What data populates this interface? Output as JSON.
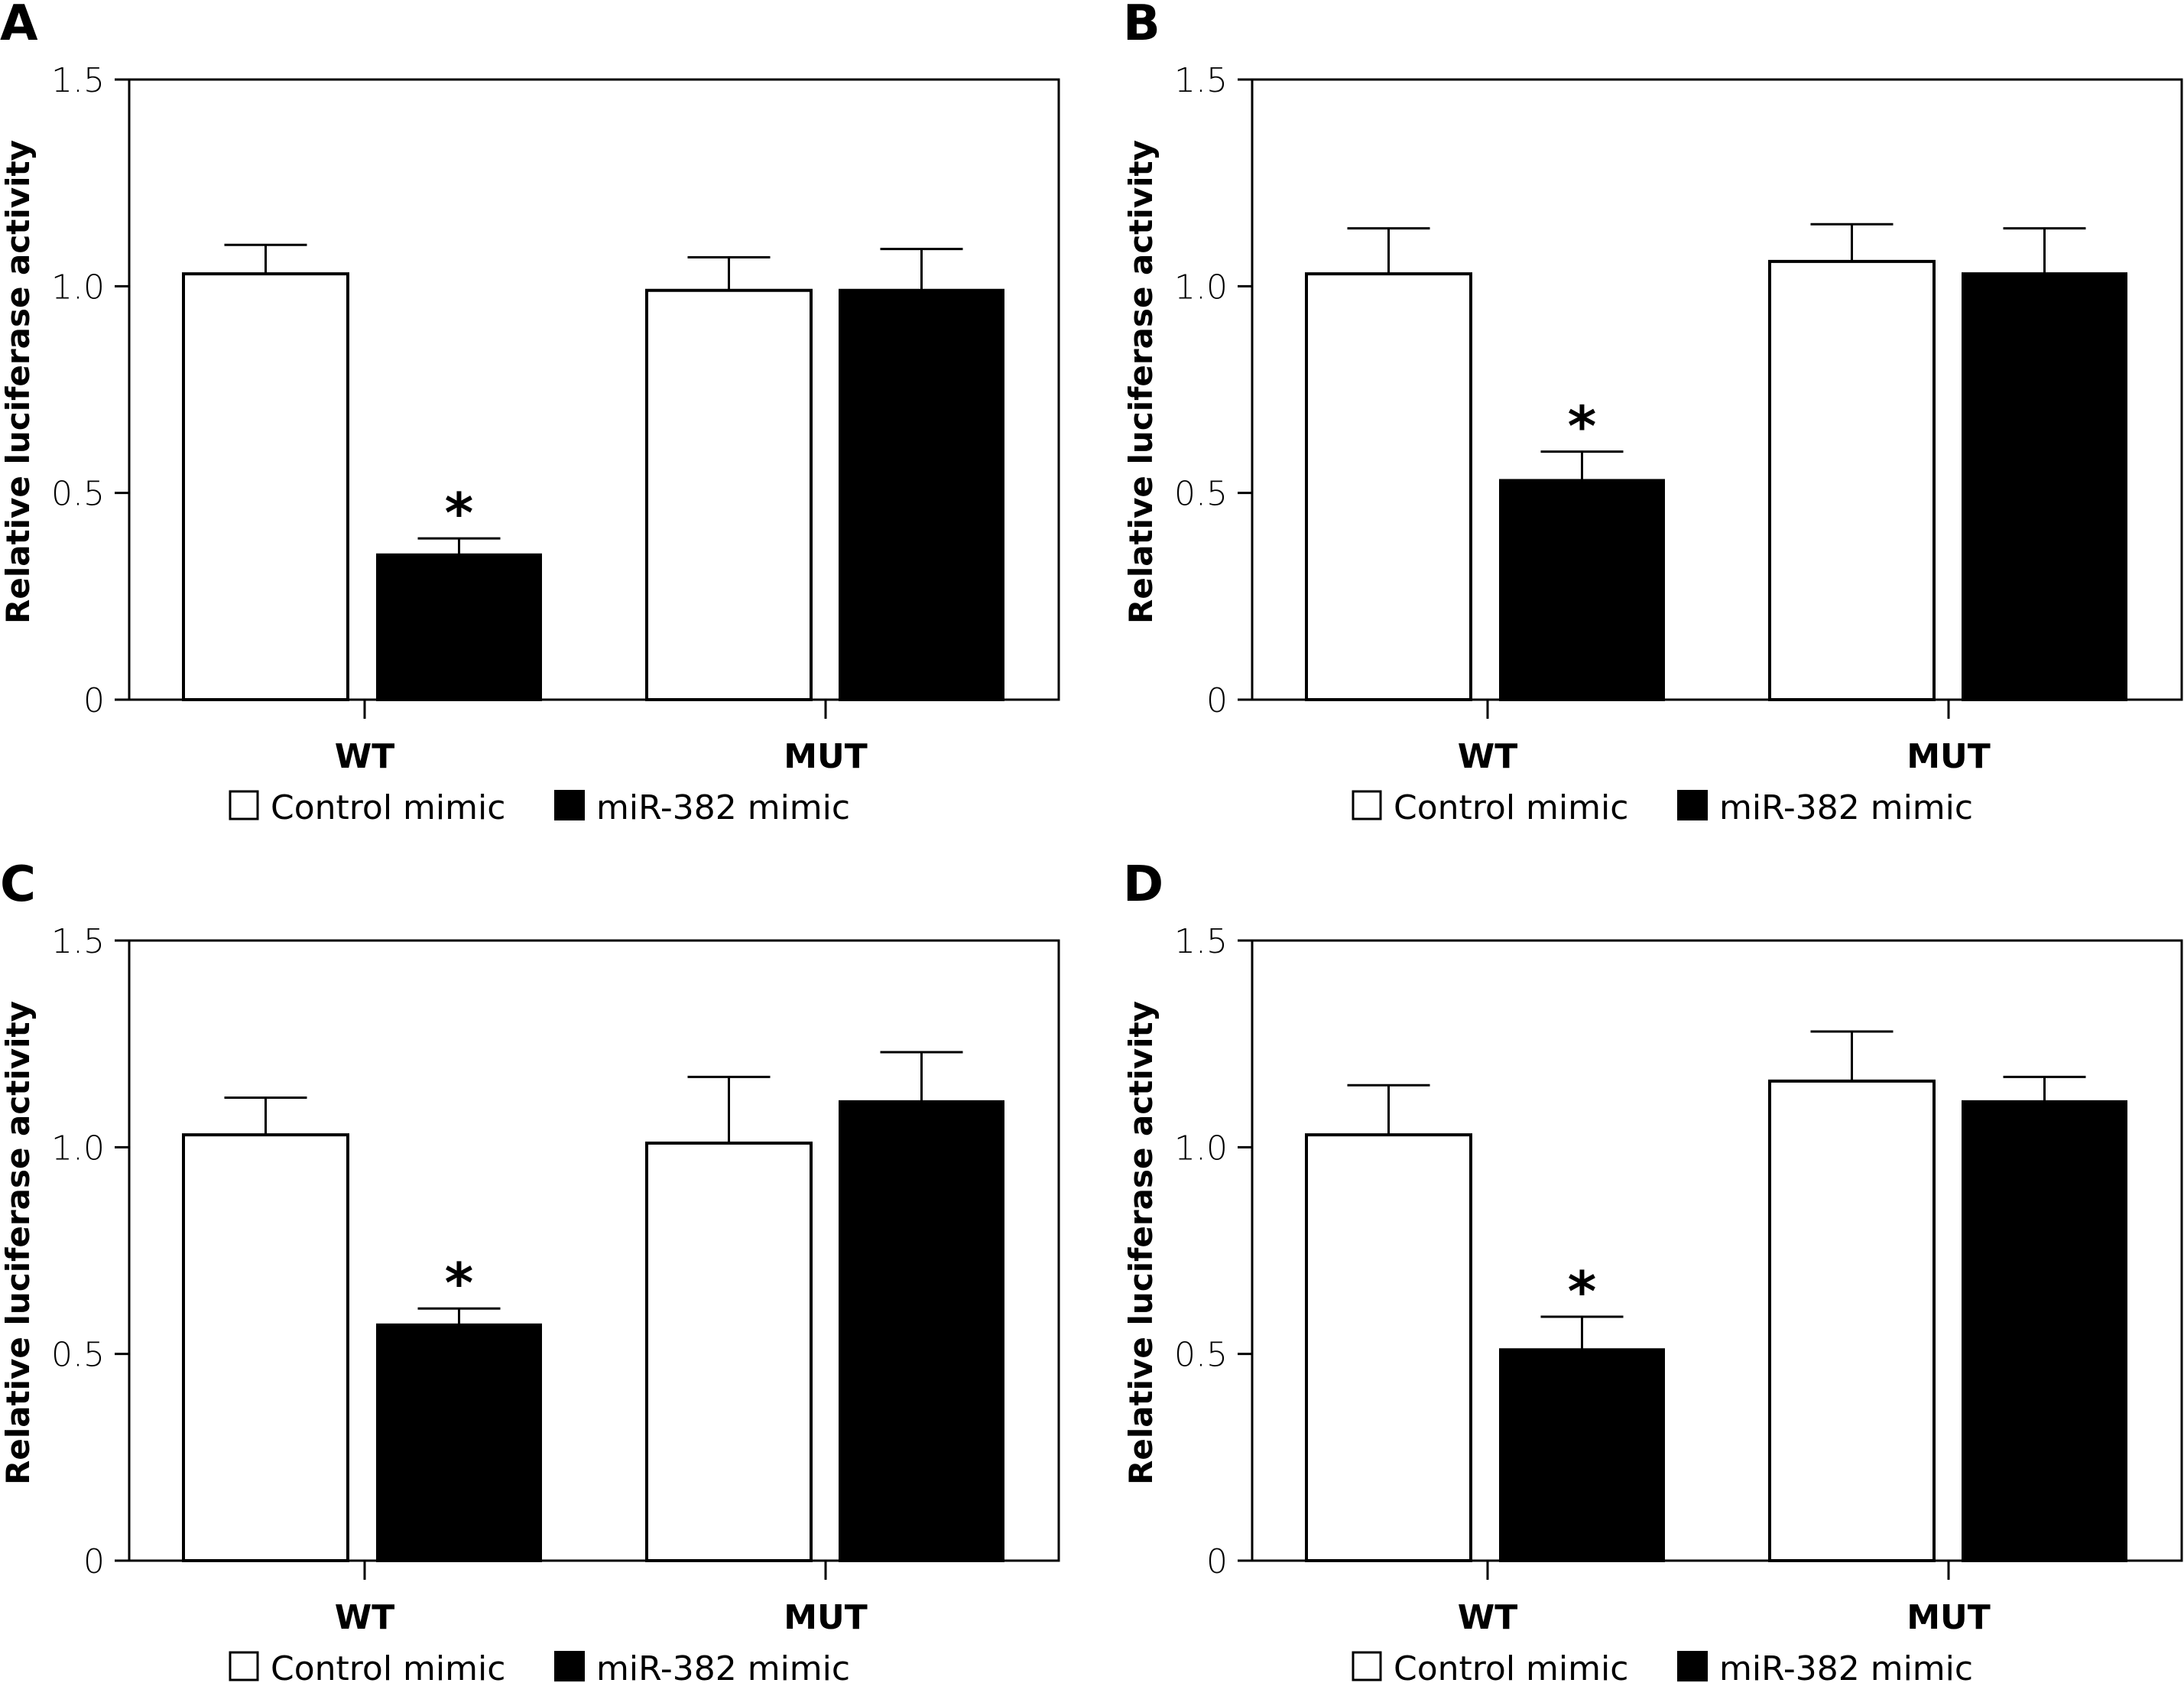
{
  "figure": {
    "colors": {
      "control": "#ffffff",
      "mimic": "#000000",
      "stroke": "#000000"
    }
  },
  "chart_data": [
    {
      "panel": "A",
      "type": "bar",
      "ylabel": "Relative luciferase activity",
      "xlabel": "",
      "ylim": [
        0,
        1.5
      ],
      "yticks": [
        "0",
        "0.5",
        "1.0",
        "1.5"
      ],
      "ytick_values": [
        0,
        0.5,
        1.0,
        1.5
      ],
      "categories": [
        "WT",
        "MUT"
      ],
      "series": [
        {
          "name": "Control mimic",
          "values": [
            1.03,
            0.99
          ],
          "errors": [
            0.07,
            0.08
          ]
        },
        {
          "name": "miR-382 mimic",
          "values": [
            0.35,
            0.99
          ],
          "errors": [
            0.04,
            0.1
          ]
        }
      ],
      "annotations": [
        {
          "text": "*",
          "category": "WT",
          "series": "miR-382 mimic"
        }
      ],
      "legend": {
        "position": "bottom",
        "entries": [
          "Control mimic",
          "miR-382 mimic"
        ]
      },
      "grid": false
    },
    {
      "panel": "B",
      "type": "bar",
      "ylabel": "Relative luciferase activity",
      "xlabel": "",
      "ylim": [
        0,
        1.5
      ],
      "yticks": [
        "0",
        "0.5",
        "1.0",
        "1.5"
      ],
      "ytick_values": [
        0,
        0.5,
        1.0,
        1.5
      ],
      "categories": [
        "WT",
        "MUT"
      ],
      "series": [
        {
          "name": "Control mimic",
          "values": [
            1.03,
            1.06
          ],
          "errors": [
            0.11,
            0.09
          ]
        },
        {
          "name": "miR-382 mimic",
          "values": [
            0.53,
            1.03
          ],
          "errors": [
            0.07,
            0.11
          ]
        }
      ],
      "annotations": [
        {
          "text": "*",
          "category": "WT",
          "series": "miR-382 mimic"
        }
      ],
      "legend": {
        "position": "bottom",
        "entries": [
          "Control mimic",
          "miR-382 mimic"
        ]
      },
      "grid": false
    },
    {
      "panel": "C",
      "type": "bar",
      "ylabel": "Relative luciferase activity",
      "xlabel": "",
      "ylim": [
        0,
        1.5
      ],
      "yticks": [
        "0",
        "0.5",
        "1.0",
        "1.5"
      ],
      "ytick_values": [
        0,
        0.5,
        1.0,
        1.5
      ],
      "categories": [
        "WT",
        "MUT"
      ],
      "series": [
        {
          "name": "Control mimic",
          "values": [
            1.03,
            1.01
          ],
          "errors": [
            0.09,
            0.16
          ]
        },
        {
          "name": "miR-382 mimic",
          "values": [
            0.57,
            1.11
          ],
          "errors": [
            0.04,
            0.12
          ]
        }
      ],
      "annotations": [
        {
          "text": "*",
          "category": "WT",
          "series": "miR-382 mimic"
        }
      ],
      "legend": {
        "position": "bottom",
        "entries": [
          "Control mimic",
          "miR-382 mimic"
        ]
      },
      "grid": false
    },
    {
      "panel": "D",
      "type": "bar",
      "ylabel": "Relative luciferase activity",
      "xlabel": "",
      "ylim": [
        0,
        1.5
      ],
      "yticks": [
        "0",
        "0.5",
        "1.0",
        "1.5"
      ],
      "ytick_values": [
        0,
        0.5,
        1.0,
        1.5
      ],
      "categories": [
        "WT",
        "MUT"
      ],
      "series": [
        {
          "name": "Control mimic",
          "values": [
            1.03,
            1.16
          ],
          "errors": [
            0.12,
            0.12
          ]
        },
        {
          "name": "miR-382 mimic",
          "values": [
            0.51,
            1.11
          ],
          "errors": [
            0.08,
            0.06
          ]
        }
      ],
      "annotations": [
        {
          "text": "*",
          "category": "WT",
          "series": "miR-382 mimic"
        }
      ],
      "legend": {
        "position": "bottom",
        "entries": [
          "Control mimic",
          "miR-382 mimic"
        ]
      },
      "grid": false
    }
  ]
}
